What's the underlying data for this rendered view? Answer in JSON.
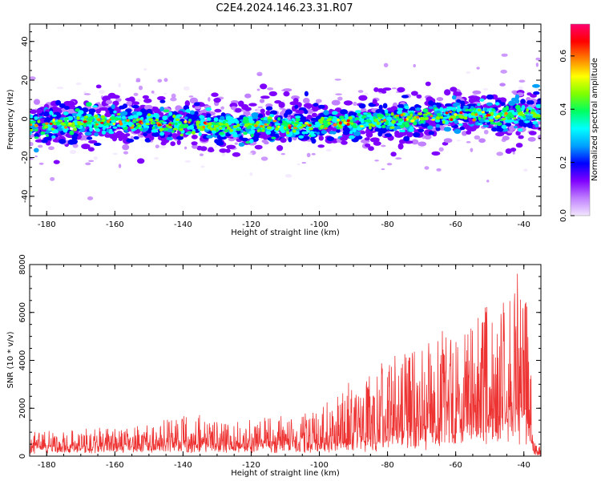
{
  "figure": {
    "title": "C2E4.2024.146.23.31.R07"
  },
  "chart_data": [
    {
      "type": "heatmap",
      "xlabel": "Height of straight line (km)",
      "ylabel": "Frequency (Hz)",
      "xlim": [
        -185,
        -35
      ],
      "ylim": [
        -50,
        49
      ],
      "xticks": [
        -180,
        -160,
        -140,
        -120,
        -100,
        -80,
        -60,
        -40
      ],
      "yticks": [
        -40,
        -20,
        0,
        20,
        40
      ],
      "ridge_center_hz": [
        {
          "x": -185,
          "y": -4
        },
        {
          "x": -160,
          "y": -1
        },
        {
          "x": -140,
          "y": -3
        },
        {
          "x": -120,
          "y": -4
        },
        {
          "x": -100,
          "y": -3
        },
        {
          "x": -80,
          "y": -1
        },
        {
          "x": -60,
          "y": 2
        },
        {
          "x": -36,
          "y": 2
        }
      ],
      "colorbar": {
        "label": "Normalized spectral amplitude",
        "range": [
          0.0,
          0.72
        ],
        "ticks": [
          0.0,
          0.2,
          0.4,
          0.6
        ],
        "colors": [
          "#f2e6ff",
          "#c080ff",
          "#8000ff",
          "#0000ff",
          "#00a0ff",
          "#00ffff",
          "#00ff60",
          "#80ff00",
          "#ffff00",
          "#ff8000",
          "#ff0000",
          "#ff0070"
        ]
      },
      "grid": false
    },
    {
      "type": "line",
      "xlabel": "Height of straight line (km)",
      "ylabel": "SNR (10 * v/v)",
      "xlim": [
        -185,
        -35
      ],
      "ylim": [
        0,
        8000
      ],
      "xticks": [
        -180,
        -160,
        -140,
        -120,
        -100,
        -80,
        -60,
        -40
      ],
      "yticks": [
        0,
        2000,
        4000,
        6000,
        8000
      ],
      "line_color": "#ee3333",
      "envelope": [
        {
          "x": -185,
          "peak": 1000,
          "base": 300
        },
        {
          "x": -170,
          "peak": 1100,
          "base": 300
        },
        {
          "x": -155,
          "peak": 1300,
          "base": 350
        },
        {
          "x": -140,
          "peak": 1700,
          "base": 400
        },
        {
          "x": -125,
          "peak": 1500,
          "base": 400
        },
        {
          "x": -110,
          "peak": 1700,
          "base": 400
        },
        {
          "x": -100,
          "peak": 1900,
          "base": 450
        },
        {
          "x": -95,
          "peak": 3000,
          "base": 500
        },
        {
          "x": -85,
          "peak": 3900,
          "base": 600
        },
        {
          "x": -75,
          "peak": 4300,
          "base": 700
        },
        {
          "x": -65,
          "peak": 5100,
          "base": 800
        },
        {
          "x": -55,
          "peak": 5600,
          "base": 1000
        },
        {
          "x": -47,
          "peak": 7000,
          "base": 1300
        },
        {
          "x": -42,
          "peak": 8000,
          "base": 1600
        },
        {
          "x": -39,
          "peak": 7200,
          "base": 1500
        },
        {
          "x": -37,
          "peak": 600,
          "base": 100
        },
        {
          "x": -35,
          "peak": 400,
          "base": 100
        }
      ],
      "grid": false
    }
  ]
}
